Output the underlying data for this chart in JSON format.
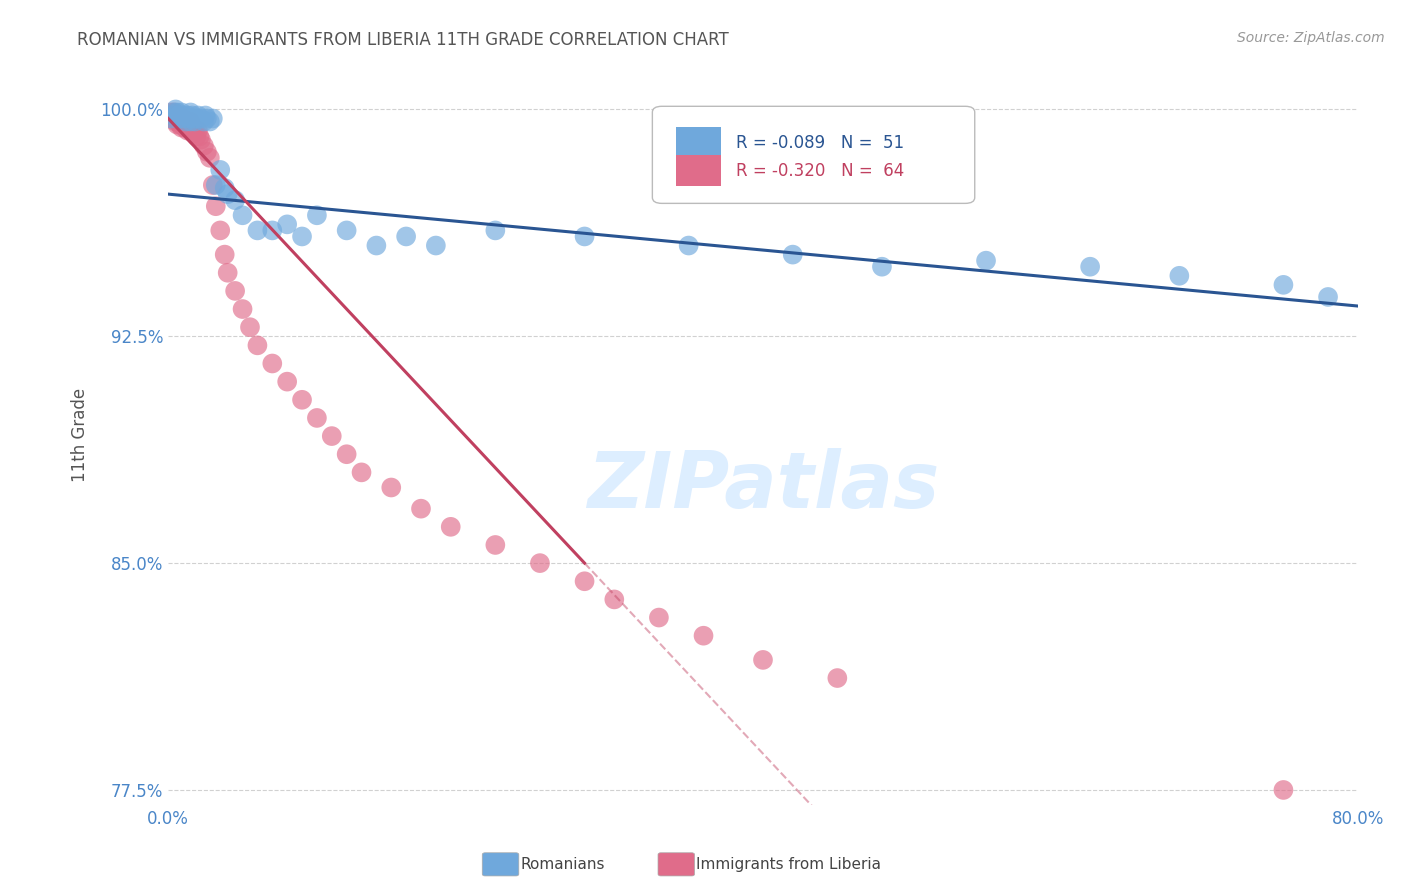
{
  "title": "ROMANIAN VS IMMIGRANTS FROM LIBERIA 11TH GRADE CORRELATION CHART",
  "source": "Source: ZipAtlas.com",
  "ylabel_text": "11th Grade",
  "legend_blue_r": "R = -0.089",
  "legend_blue_n": "N =  51",
  "legend_pink_r": "R = -0.320",
  "legend_pink_n": "N =  64",
  "blue_color": "#6fa8dc",
  "pink_color": "#e06c8a",
  "blue_line_color": "#2a5592",
  "pink_line_color": "#c04060",
  "background_color": "#ffffff",
  "grid_color": "#cccccc",
  "title_color": "#555555",
  "axis_label_color": "#4a86c8",
  "source_color": "#999999",
  "watermark_color": "#ddeeff",
  "y_ticks": [
    1.0,
    0.925,
    0.85,
    0.775
  ],
  "y_tick_labels": [
    "100.0%",
    "92.5%",
    "85.0%",
    "77.5%"
  ],
  "x_min": 0.0,
  "x_max": 0.8,
  "y_min": 0.77,
  "y_max": 1.015,
  "blue_scatter_x": [
    0.002,
    0.003,
    0.004,
    0.005,
    0.006,
    0.007,
    0.008,
    0.009,
    0.01,
    0.011,
    0.012,
    0.013,
    0.014,
    0.015,
    0.015,
    0.016,
    0.017,
    0.018,
    0.019,
    0.02,
    0.022,
    0.024,
    0.025,
    0.026,
    0.028,
    0.03,
    0.032,
    0.035,
    0.038,
    0.04,
    0.045,
    0.05,
    0.06,
    0.07,
    0.08,
    0.09,
    0.1,
    0.12,
    0.14,
    0.16,
    0.18,
    0.22,
    0.28,
    0.35,
    0.42,
    0.48,
    0.55,
    0.62,
    0.68,
    0.75,
    0.78
  ],
  "blue_scatter_y": [
    0.997,
    0.998,
    0.999,
    1.0,
    0.999,
    0.998,
    0.997,
    0.999,
    0.998,
    0.997,
    0.996,
    0.998,
    0.997,
    0.999,
    0.996,
    0.998,
    0.997,
    0.996,
    0.997,
    0.998,
    0.997,
    0.996,
    0.998,
    0.997,
    0.996,
    0.997,
    0.975,
    0.98,
    0.974,
    0.972,
    0.97,
    0.965,
    0.96,
    0.96,
    0.962,
    0.958,
    0.965,
    0.96,
    0.955,
    0.958,
    0.955,
    0.96,
    0.958,
    0.955,
    0.952,
    0.948,
    0.95,
    0.948,
    0.945,
    0.942,
    0.938
  ],
  "pink_scatter_x": [
    0.001,
    0.002,
    0.003,
    0.003,
    0.004,
    0.005,
    0.005,
    0.006,
    0.006,
    0.007,
    0.007,
    0.008,
    0.008,
    0.009,
    0.009,
    0.01,
    0.01,
    0.011,
    0.011,
    0.012,
    0.012,
    0.013,
    0.013,
    0.014,
    0.015,
    0.015,
    0.016,
    0.017,
    0.018,
    0.019,
    0.02,
    0.021,
    0.022,
    0.024,
    0.026,
    0.028,
    0.03,
    0.032,
    0.035,
    0.038,
    0.04,
    0.045,
    0.05,
    0.055,
    0.06,
    0.07,
    0.08,
    0.09,
    0.1,
    0.11,
    0.12,
    0.13,
    0.15,
    0.17,
    0.19,
    0.22,
    0.25,
    0.28,
    0.3,
    0.33,
    0.36,
    0.4,
    0.45,
    0.75
  ],
  "pink_scatter_y": [
    0.998,
    0.999,
    0.998,
    0.997,
    0.999,
    0.998,
    0.996,
    0.997,
    0.995,
    0.998,
    0.996,
    0.997,
    0.995,
    0.996,
    0.994,
    0.997,
    0.995,
    0.996,
    0.994,
    0.996,
    0.994,
    0.995,
    0.993,
    0.994,
    0.996,
    0.993,
    0.994,
    0.992,
    0.993,
    0.991,
    0.993,
    0.991,
    0.99,
    0.988,
    0.986,
    0.984,
    0.975,
    0.968,
    0.96,
    0.952,
    0.946,
    0.94,
    0.934,
    0.928,
    0.922,
    0.916,
    0.91,
    0.904,
    0.898,
    0.892,
    0.886,
    0.88,
    0.875,
    0.868,
    0.862,
    0.856,
    0.85,
    0.844,
    0.838,
    0.832,
    0.826,
    0.818,
    0.812,
    0.775
  ]
}
